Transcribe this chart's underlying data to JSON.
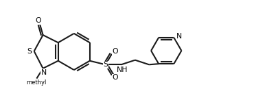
{
  "bg_color": "#ffffff",
  "bond_color": "#1a1a1a",
  "text_color": "#000000",
  "lw": 1.5,
  "fig_w": 3.89,
  "fig_h": 1.62,
  "dpi": 100,
  "xlim": [
    0,
    10.5
  ],
  "ylim": [
    0.2,
    4.5
  ]
}
